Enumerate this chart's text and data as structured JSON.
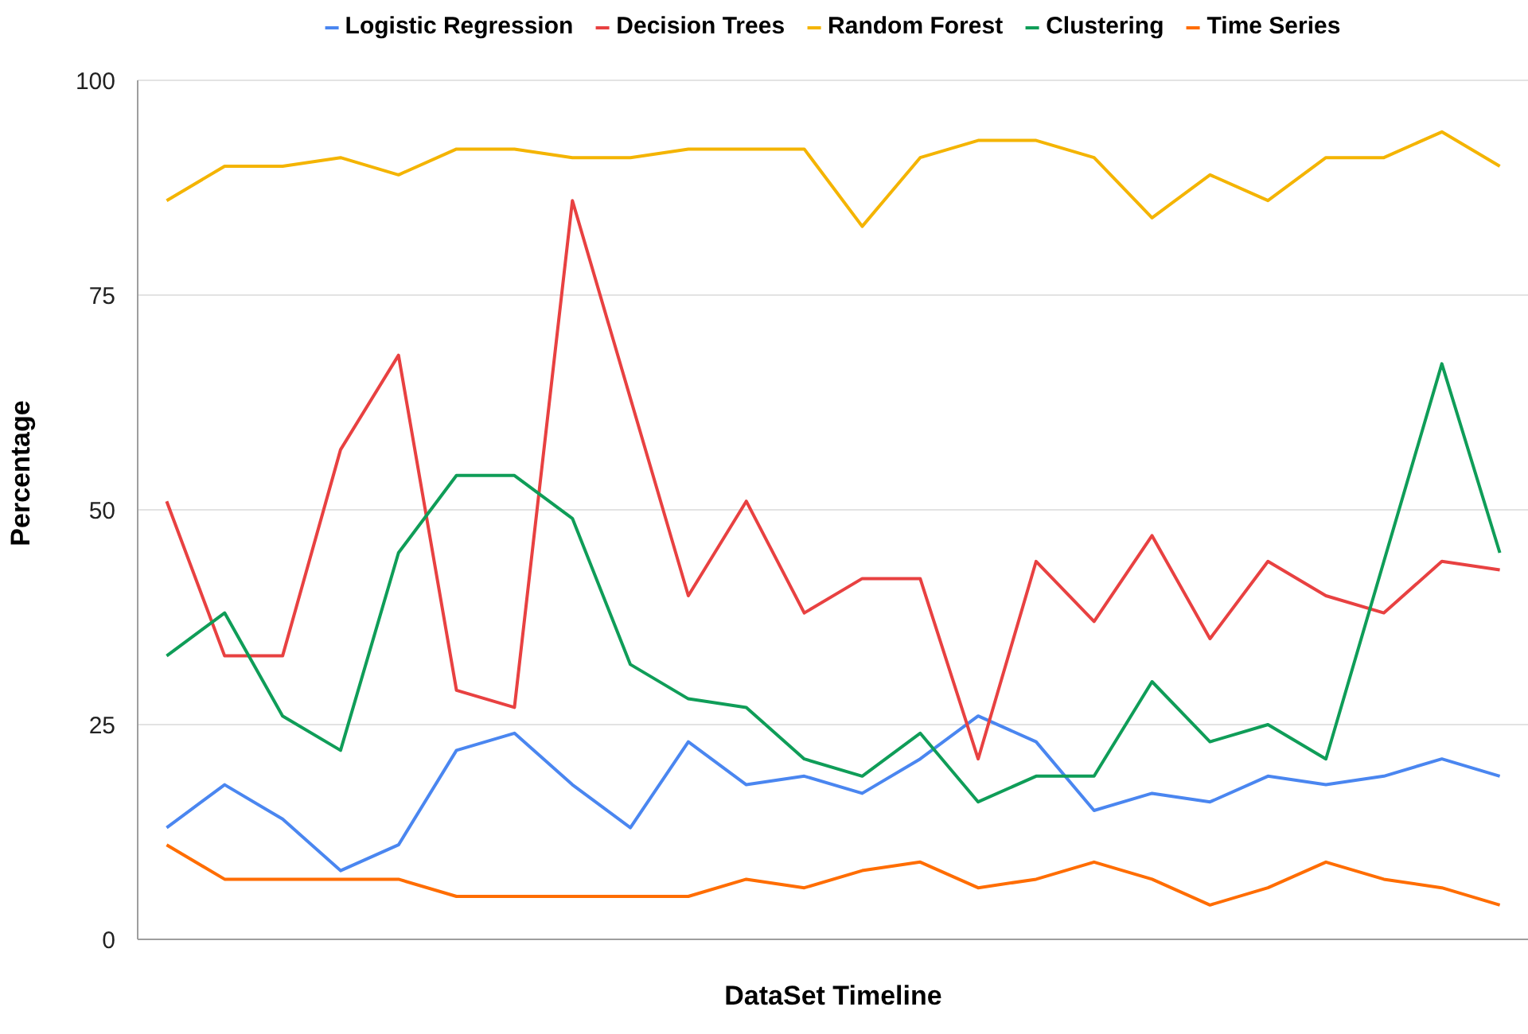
{
  "chart_data": {
    "type": "line",
    "xlabel": "DataSet Timeline",
    "ylabel": "Percentage",
    "categories": [
      null,
      null,
      null,
      null,
      null,
      null,
      null,
      null,
      null,
      null,
      null,
      null,
      null,
      null,
      null,
      null,
      null,
      null,
      null,
      null,
      null,
      null,
      null,
      null
    ],
    "series": [
      {
        "name": "Logistic Regression",
        "color": "#4a86f0",
        "values": [
          13,
          18,
          14,
          8,
          11,
          22,
          24,
          18,
          13,
          23,
          18,
          19,
          17,
          21,
          26,
          23,
          15,
          17,
          16,
          19,
          18,
          19,
          21,
          19
        ]
      },
      {
        "name": "Decision Trees",
        "color": "#e84141",
        "values": [
          51,
          33,
          33,
          57,
          68,
          29,
          27,
          86,
          63,
          40,
          51,
          38,
          42,
          42,
          21,
          44,
          37,
          47,
          35,
          44,
          40,
          38,
          44,
          43
        ]
      },
      {
        "name": "Random Forest",
        "color": "#f4b400",
        "values": [
          86,
          90,
          90,
          91,
          89,
          92,
          92,
          91,
          91,
          92,
          92,
          92,
          83,
          91,
          93,
          93,
          91,
          84,
          89,
          86,
          91,
          91,
          94,
          90
        ]
      },
      {
        "name": "Clustering",
        "color": "#0f9d58",
        "values": [
          33,
          38,
          26,
          22,
          45,
          54,
          54,
          49,
          32,
          28,
          27,
          21,
          19,
          24,
          16,
          19,
          19,
          30,
          23,
          25,
          21,
          44,
          67,
          45
        ]
      },
      {
        "name": "Time Series",
        "color": "#ff6d01",
        "values": [
          11,
          7,
          7,
          7,
          7,
          5,
          5,
          5,
          5,
          5,
          7,
          6,
          8,
          9,
          6,
          7,
          9,
          7,
          4,
          6,
          9,
          7,
          6,
          4
        ]
      }
    ],
    "ylim": [
      0,
      100
    ],
    "yticks": [
      0,
      25,
      50,
      75,
      100
    ],
    "grid": "y",
    "legend": "top",
    "tick_labels": "y"
  }
}
